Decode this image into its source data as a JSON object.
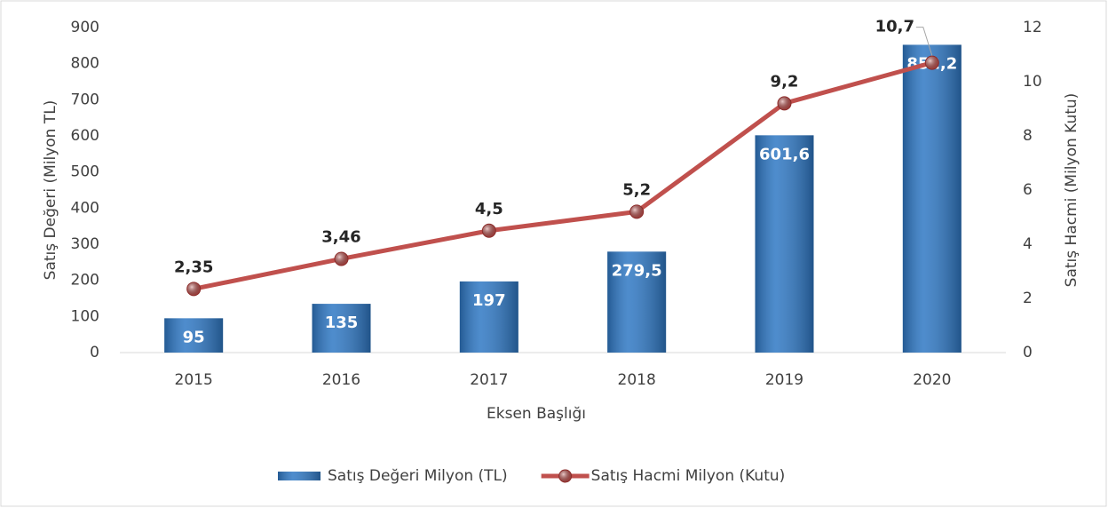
{
  "chart_data": {
    "type": "bar",
    "categories": [
      "2015",
      "2016",
      "2017",
      "2018",
      "2019",
      "2020"
    ],
    "xlabel": "Eksen Başlığı",
    "ylabel": "Satış Değeri (Milyon TL)",
    "y2label": "Satış Hacmi (Milyon Kutu)",
    "ylim": [
      0,
      900
    ],
    "yticks": [
      0,
      100,
      200,
      300,
      400,
      500,
      600,
      700,
      800,
      900
    ],
    "y2lim": [
      0,
      12
    ],
    "y2ticks": [
      0,
      2,
      4,
      6,
      8,
      10,
      12
    ],
    "legend": "bottom",
    "series": [
      {
        "name": "Satış Değeri Milyon (TL)",
        "type": "bar",
        "color": "#2f78c4",
        "values": [
          95,
          135,
          197,
          279.5,
          601.6,
          852.2
        ],
        "value_labels": [
          "95",
          "135",
          "197",
          "279,5",
          "601,6",
          "852,2"
        ]
      },
      {
        "name": "Satış Hacmi Milyon (Kutu)",
        "type": "line",
        "axis": "y2",
        "color": "#c0504d",
        "values": [
          2.35,
          3.46,
          4.5,
          5.2,
          9.2,
          10.7
        ],
        "value_labels": [
          "2,35",
          "3,46",
          "4,5",
          "5,2",
          "9,2",
          "10,7"
        ]
      }
    ]
  }
}
